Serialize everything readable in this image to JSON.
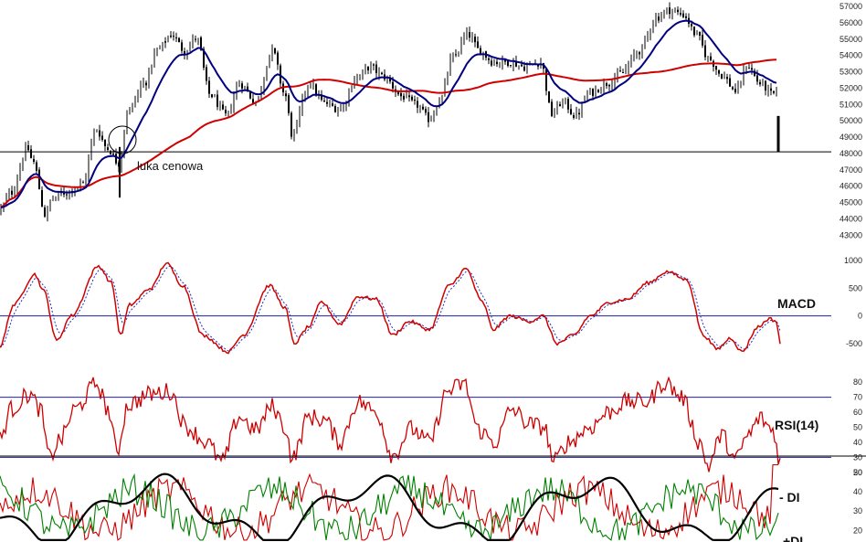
{
  "chart_data": [
    {
      "type": "candlestick",
      "panel": "price",
      "ylim": [
        42400,
        57400
      ],
      "yticks": [
        43000,
        44000,
        45000,
        46000,
        47000,
        48000,
        49000,
        50000,
        51000,
        52000,
        53000,
        54000,
        55000,
        56000,
        57000
      ],
      "reference_line": 48100,
      "annotation": "luka cenowa",
      "anchors": [
        [
          0,
          44600
        ],
        [
          12,
          45600
        ],
        [
          30,
          48300
        ],
        [
          36,
          47500
        ],
        [
          50,
          44200
        ],
        [
          56,
          45200
        ],
        [
          70,
          45600
        ],
        [
          90,
          46100
        ],
        [
          105,
          49500
        ],
        [
          118,
          48300
        ],
        [
          130,
          47400
        ],
        [
          140,
          50600
        ],
        [
          158,
          52300
        ],
        [
          172,
          54300
        ],
        [
          188,
          55300
        ],
        [
          202,
          54300
        ],
        [
          215,
          55100
        ],
        [
          230,
          51600
        ],
        [
          248,
          50300
        ],
        [
          262,
          52300
        ],
        [
          280,
          51200
        ],
        [
          298,
          54300
        ],
        [
          312,
          51600
        ],
        [
          320,
          49100
        ],
        [
          338,
          52300
        ],
        [
          355,
          51100
        ],
        [
          372,
          50700
        ],
        [
          390,
          52600
        ],
        [
          405,
          53300
        ],
        [
          420,
          52700
        ],
        [
          440,
          51500
        ],
        [
          455,
          51000
        ],
        [
          470,
          50100
        ],
        [
          482,
          51300
        ],
        [
          495,
          53800
        ],
        [
          512,
          55300
        ],
        [
          525,
          54300
        ],
        [
          540,
          53600
        ],
        [
          558,
          53600
        ],
        [
          575,
          53300
        ],
        [
          592,
          53600
        ],
        [
          604,
          50400
        ],
        [
          616,
          51200
        ],
        [
          630,
          50300
        ],
        [
          645,
          51700
        ],
        [
          665,
          52300
        ],
        [
          680,
          52900
        ],
        [
          700,
          54300
        ],
        [
          718,
          56300
        ],
        [
          732,
          56800
        ],
        [
          748,
          56500
        ],
        [
          762,
          55300
        ],
        [
          776,
          53800
        ],
        [
          790,
          52800
        ],
        [
          806,
          51800
        ],
        [
          818,
          53400
        ],
        [
          832,
          52300
        ],
        [
          846,
          51600
        ],
        [
          852,
          51900
        ]
      ],
      "ma_slow_color": "#d00000",
      "ma_fast_color": "#000080",
      "last_bar": {
        "high": 50300,
        "low": 48100
      }
    },
    {
      "type": "line",
      "panel": "MACD",
      "title": "MACD",
      "ylim": [
        -900,
        1250
      ],
      "yticks": [
        -500,
        0,
        500,
        1000
      ],
      "zero_line": 0,
      "anchors": [
        [
          0,
          -550
        ],
        [
          15,
          200
        ],
        [
          38,
          750
        ],
        [
          48,
          450
        ],
        [
          62,
          -450
        ],
        [
          78,
          0
        ],
        [
          108,
          900
        ],
        [
          122,
          600
        ],
        [
          132,
          -350
        ],
        [
          142,
          200
        ],
        [
          165,
          500
        ],
        [
          182,
          950
        ],
        [
          200,
          550
        ],
        [
          222,
          -350
        ],
        [
          250,
          -650
        ],
        [
          266,
          -350
        ],
        [
          295,
          550
        ],
        [
          312,
          150
        ],
        [
          322,
          -500
        ],
        [
          338,
          -200
        ],
        [
          352,
          250
        ],
        [
          372,
          -150
        ],
        [
          392,
          350
        ],
        [
          412,
          300
        ],
        [
          430,
          -350
        ],
        [
          448,
          -100
        ],
        [
          470,
          -250
        ],
        [
          492,
          550
        ],
        [
          510,
          850
        ],
        [
          528,
          250
        ],
        [
          540,
          -250
        ],
        [
          558,
          0
        ],
        [
          580,
          -100
        ],
        [
          594,
          0
        ],
        [
          610,
          -500
        ],
        [
          628,
          -350
        ],
        [
          646,
          0
        ],
        [
          668,
          250
        ],
        [
          686,
          300
        ],
        [
          710,
          600
        ],
        [
          730,
          800
        ],
        [
          752,
          650
        ],
        [
          770,
          -350
        ],
        [
          785,
          -600
        ],
        [
          800,
          -400
        ],
        [
          812,
          -650
        ],
        [
          830,
          -200
        ],
        [
          842,
          -50
        ],
        [
          850,
          -100
        ],
        [
          854,
          -500
        ]
      ],
      "series": [
        {
          "values": "solid",
          "color": "#d00000"
        },
        {
          "values": "dotted",
          "color": "#2030c0"
        }
      ]
    },
    {
      "type": "line",
      "panel": "RSI",
      "title": "RSI(14)",
      "ylim": [
        15,
        88
      ],
      "yticks": [
        20,
        30,
        40,
        50,
        60,
        70,
        80
      ],
      "levels": [
        30,
        70
      ],
      "anchors": [
        [
          0,
          42
        ],
        [
          12,
          62
        ],
        [
          32,
          72
        ],
        [
          44,
          62
        ],
        [
          54,
          30
        ],
        [
          66,
          42
        ],
        [
          82,
          62
        ],
        [
          106,
          79
        ],
        [
          118,
          62
        ],
        [
          128,
          34
        ],
        [
          140,
          65
        ],
        [
          165,
          72
        ],
        [
          186,
          74
        ],
        [
          204,
          50
        ],
        [
          226,
          40
        ],
        [
          243,
          27
        ],
        [
          262,
          57
        ],
        [
          280,
          48
        ],
        [
          298,
          64
        ],
        [
          312,
          50
        ],
        [
          320,
          29
        ],
        [
          338,
          57
        ],
        [
          355,
          55
        ],
        [
          372,
          40
        ],
        [
          392,
          67
        ],
        [
          412,
          60
        ],
        [
          430,
          31
        ],
        [
          450,
          49
        ],
        [
          470,
          40
        ],
        [
          490,
          74
        ],
        [
          508,
          79
        ],
        [
          524,
          48
        ],
        [
          542,
          40
        ],
        [
          560,
          62
        ],
        [
          580,
          52
        ],
        [
          596,
          50
        ],
        [
          606,
          27
        ],
        [
          622,
          40
        ],
        [
          646,
          50
        ],
        [
          666,
          60
        ],
        [
          686,
          67
        ],
        [
          708,
          67
        ],
        [
          728,
          80
        ],
        [
          746,
          70
        ],
        [
          766,
          40
        ],
        [
          775,
          24
        ],
        [
          790,
          45
        ],
        [
          805,
          28
        ],
        [
          818,
          44
        ],
        [
          832,
          56
        ],
        [
          846,
          48
        ],
        [
          854,
          28
        ]
      ],
      "color": "#d00000"
    },
    {
      "type": "line",
      "panel": "DMI",
      "series": [
        {
          "name": "- DI",
          "color": "#d00000"
        },
        {
          "name": "+DI",
          "color": "#008000"
        },
        {
          "name": "",
          "color": "#000000"
        }
      ],
      "yticks": [
        20,
        30,
        40,
        50
      ],
      "ylim": [
        14,
        58
      ]
    }
  ],
  "ytick_labels_price": [
    "43000",
    "44000",
    "45000",
    "46000",
    "47000",
    "48000",
    "49000",
    "50000",
    "51000",
    "52000",
    "53000",
    "54000",
    "55000",
    "56000",
    "57000"
  ],
  "ytick_labels_macd": [
    "-500",
    "0",
    "500",
    "1000"
  ],
  "ytick_labels_rsi": [
    "20",
    "30",
    "40",
    "50",
    "60",
    "70",
    "80"
  ],
  "ytick_labels_dmi": [
    "20",
    "30",
    "40",
    "50"
  ],
  "labels": {
    "macd": "MACD",
    "rsi": "RSI(14)",
    "minus_di": "- DI",
    "plus_di": "+DI",
    "gap": "luka cenowa"
  }
}
